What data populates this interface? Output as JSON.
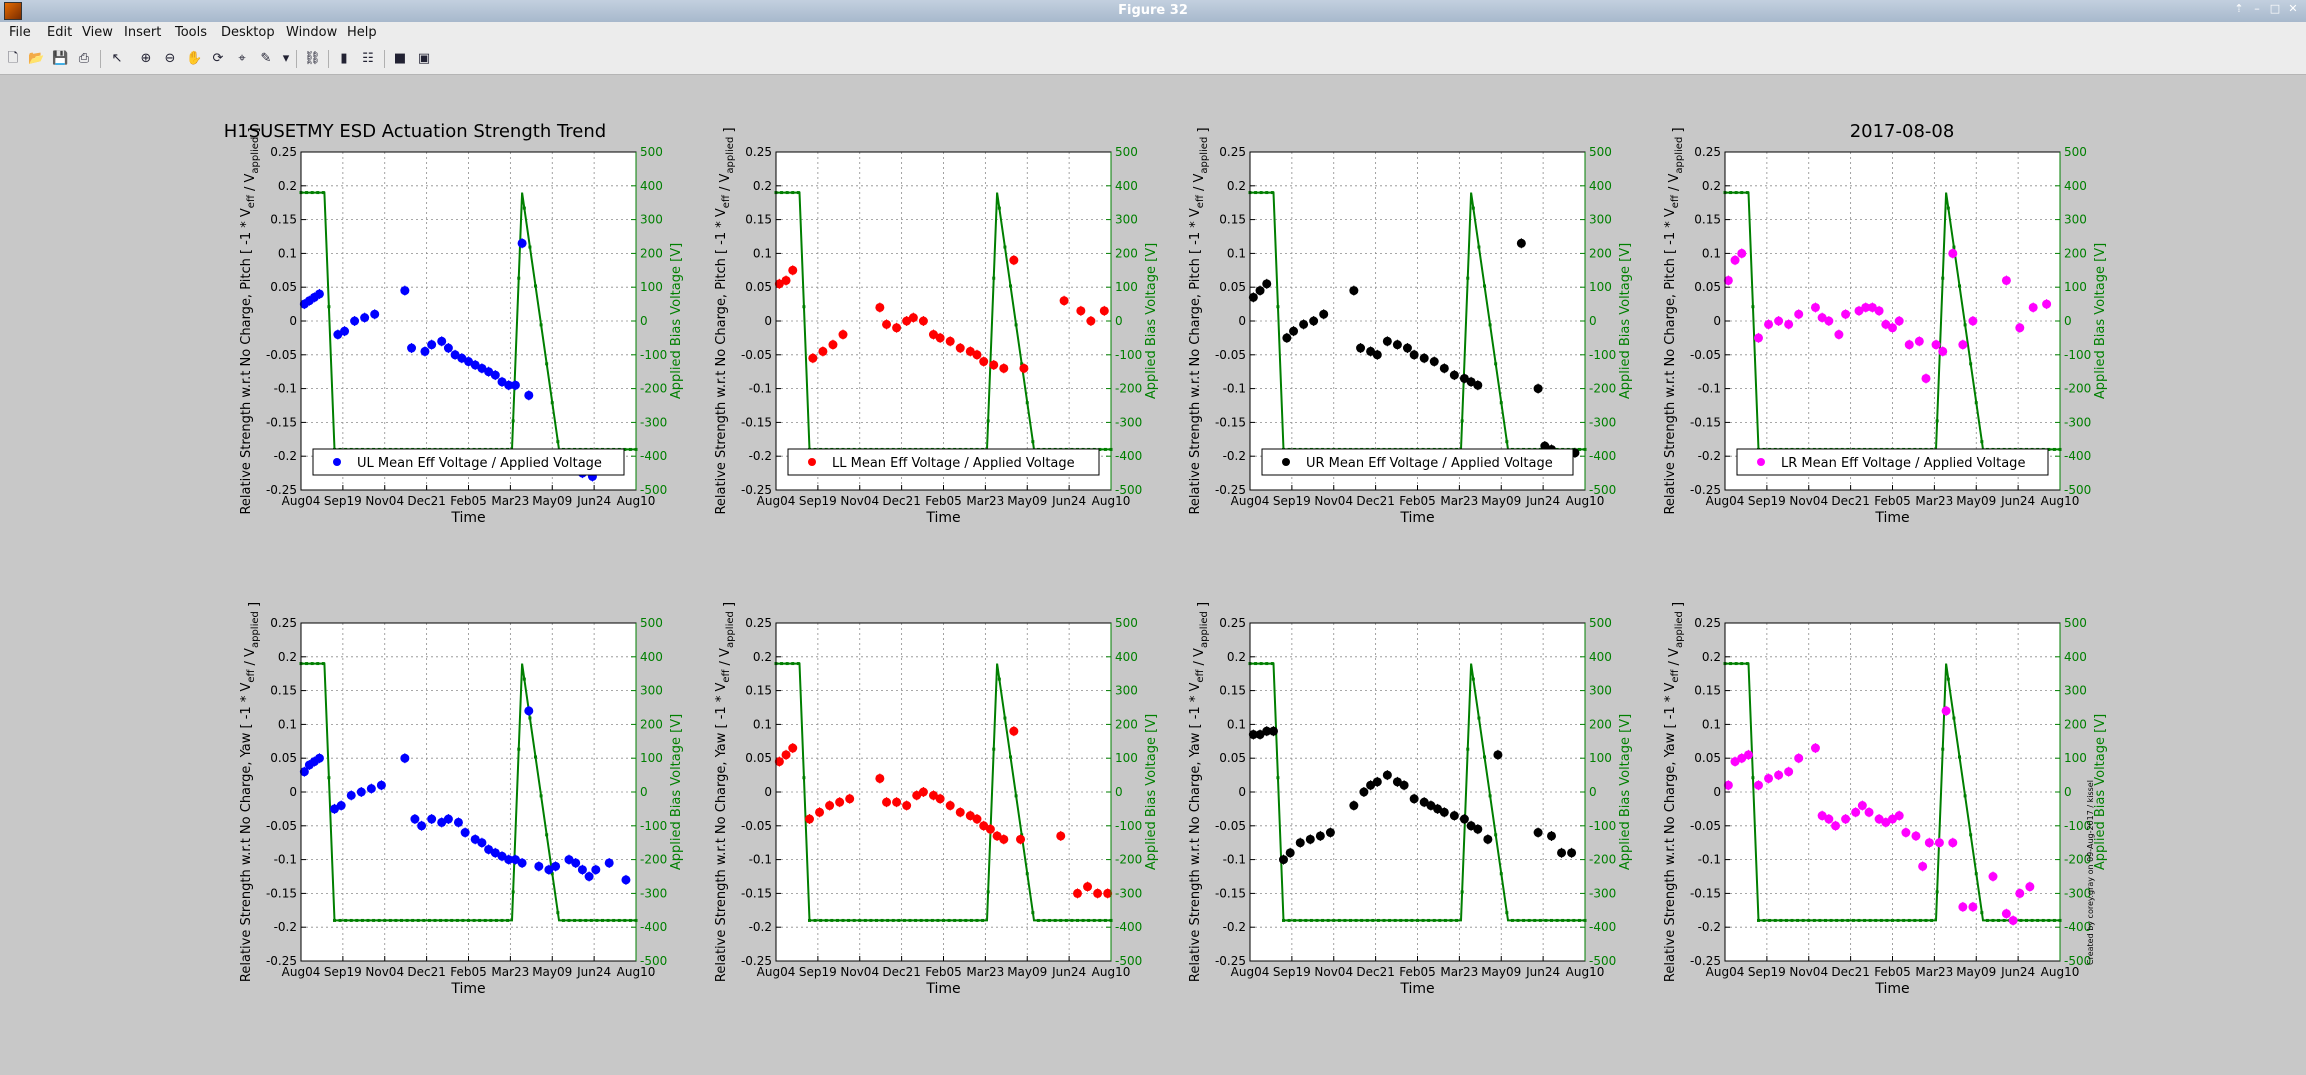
{
  "window": {
    "title": "Figure 32"
  },
  "menu": [
    "File",
    "Edit",
    "View",
    "Insert",
    "Tools",
    "Desktop",
    "Window",
    "Help"
  ],
  "toolbar": [
    "new-file-icon",
    "open-icon",
    "save-icon",
    "print-icon",
    "pointer-icon",
    "zoom-in-icon",
    "zoom-out-icon",
    "pan-icon",
    "rotate-icon",
    "data-cursor-icon",
    "brush-icon",
    "link-icon",
    "colorbar-icon",
    "legend-icon",
    "hide-plot-tools-icon",
    "show-plot-tools-icon"
  ],
  "chart_data": {
    "type": "scatter",
    "suptitle_left": "H1SUSETMY ESD Actuation Strength Trend",
    "suptitle_right": "2017-08-08",
    "xlabel": "Time",
    "x_ticks": [
      "Aug04",
      "Sep19",
      "Nov04",
      "Dec21",
      "Feb05",
      "Mar23",
      "May09",
      "Jun24",
      "Aug10"
    ],
    "y_ticks_left": [
      "0.25",
      "0.2",
      "0.15",
      "0.1",
      "0.05",
      "0",
      "-0.05",
      "-0.1",
      "-0.15",
      "-0.2",
      "-0.25"
    ],
    "y_ticks_right": [
      "500",
      "400",
      "300",
      "200",
      "100",
      "0",
      "-100",
      "-200",
      "-300",
      "-400",
      "-500"
    ],
    "ylim_left": [
      -0.25,
      0.25
    ],
    "ylim_right": [
      -500,
      500
    ],
    "ylabel_right": "Applied Bias Voltage [V]",
    "grid": true,
    "legend_position": "bottom",
    "side_annotation": "Created by corey.gray on 09-Aug-2017 / kissel",
    "bias_voltage": {
      "color": "#007f00",
      "x": [
        0,
        0.07,
        0.1,
        0.63,
        0.66,
        0.77,
        0.8,
        1
      ],
      "y": [
        380,
        380,
        -380,
        -380,
        380,
        -380,
        -380,
        -380
      ]
    },
    "panels": [
      {
        "quadrant": "UL",
        "dof": "Pitch",
        "color": "#0000ff",
        "legend": "UL Mean Eff Voltage / Applied Voltage",
        "ylabel": "Relative Strength w.r.t No Charge, Pitch [ -1 * V_eff / V_applied ]",
        "x": [
          0.01,
          0.025,
          0.04,
          0.055,
          0.11,
          0.13,
          0.16,
          0.19,
          0.22,
          0.31,
          0.33,
          0.37,
          0.39,
          0.42,
          0.44,
          0.46,
          0.48,
          0.5,
          0.52,
          0.54,
          0.56,
          0.58,
          0.6,
          0.62,
          0.64,
          0.66,
          0.68,
          0.78,
          0.81,
          0.84,
          0.87
        ],
        "y": [
          0.025,
          0.03,
          0.035,
          0.04,
          -0.02,
          -0.015,
          0.0,
          0.005,
          0.01,
          0.045,
          -0.04,
          -0.045,
          -0.035,
          -0.03,
          -0.04,
          -0.05,
          -0.055,
          -0.06,
          -0.065,
          -0.07,
          -0.075,
          -0.08,
          -0.09,
          -0.095,
          -0.095,
          0.115,
          -0.11,
          -0.215,
          -0.22,
          -0.225,
          -0.23
        ]
      },
      {
        "quadrant": "LL",
        "dof": "Pitch",
        "color": "#ff0000",
        "legend": "LL Mean Eff Voltage / Applied Voltage",
        "ylabel": "Relative Strength w.r.t No Charge, Pitch [ -1 * V_eff / V_applied ]",
        "x": [
          0.01,
          0.03,
          0.05,
          0.11,
          0.14,
          0.17,
          0.2,
          0.31,
          0.33,
          0.36,
          0.39,
          0.41,
          0.44,
          0.47,
          0.49,
          0.52,
          0.55,
          0.58,
          0.6,
          0.62,
          0.65,
          0.68,
          0.71,
          0.74,
          0.86,
          0.91,
          0.94,
          0.98
        ],
        "y": [
          0.055,
          0.06,
          0.075,
          -0.055,
          -0.045,
          -0.035,
          -0.02,
          0.02,
          -0.005,
          -0.01,
          0.0,
          0.005,
          0.0,
          -0.02,
          -0.025,
          -0.03,
          -0.04,
          -0.045,
          -0.05,
          -0.06,
          -0.065,
          -0.07,
          0.09,
          -0.07,
          0.03,
          0.015,
          0.0,
          0.015
        ]
      },
      {
        "quadrant": "UR",
        "dof": "Pitch",
        "color": "#000000",
        "legend": "UR Mean Eff Voltage / Applied Voltage",
        "ylabel": "Relative Strength w.r.t No Charge, Pitch [ -1 * V_eff / V_applied ]",
        "x": [
          0.01,
          0.03,
          0.05,
          0.11,
          0.13,
          0.16,
          0.19,
          0.22,
          0.31,
          0.33,
          0.36,
          0.38,
          0.41,
          0.44,
          0.47,
          0.49,
          0.52,
          0.55,
          0.58,
          0.61,
          0.64,
          0.66,
          0.68,
          0.81,
          0.86,
          0.88,
          0.9,
          0.93,
          0.97
        ],
        "y": [
          0.035,
          0.045,
          0.055,
          -0.025,
          -0.015,
          -0.005,
          0.0,
          0.01,
          0.045,
          -0.04,
          -0.045,
          -0.05,
          -0.03,
          -0.035,
          -0.04,
          -0.05,
          -0.055,
          -0.06,
          -0.07,
          -0.08,
          -0.085,
          -0.09,
          -0.095,
          0.115,
          -0.1,
          -0.185,
          -0.19,
          -0.2,
          -0.195
        ]
      },
      {
        "quadrant": "LR",
        "dof": "Pitch",
        "color": "#ff00ff",
        "legend": "LR Mean Eff Voltage / Applied Voltage",
        "ylabel": "Relative Strength w.r.t No Charge, Pitch [ -1 * V_eff / V_applied ]",
        "x": [
          0.01,
          0.03,
          0.05,
          0.1,
          0.13,
          0.16,
          0.19,
          0.22,
          0.27,
          0.29,
          0.31,
          0.34,
          0.36,
          0.4,
          0.42,
          0.44,
          0.46,
          0.48,
          0.5,
          0.52,
          0.55,
          0.58,
          0.6,
          0.63,
          0.65,
          0.68,
          0.71,
          0.74,
          0.84,
          0.88,
          0.92,
          0.96
        ],
        "y": [
          0.06,
          0.09,
          0.1,
          -0.025,
          -0.005,
          0.0,
          -0.005,
          0.01,
          0.02,
          0.005,
          0.0,
          -0.02,
          0.01,
          0.015,
          0.02,
          0.02,
          0.015,
          -0.005,
          -0.01,
          0.0,
          -0.035,
          -0.03,
          -0.085,
          -0.035,
          -0.045,
          0.1,
          -0.035,
          0.0,
          0.06,
          -0.01,
          0.02,
          0.025
        ]
      },
      {
        "quadrant": "UL",
        "dof": "Yaw",
        "color": "#0000ff",
        "legend": "",
        "ylabel": "Relative Strength w.r.t No Charge, Yaw [ -1 * V_eff / V_applied ]",
        "x": [
          0.01,
          0.025,
          0.04,
          0.055,
          0.1,
          0.12,
          0.15,
          0.18,
          0.21,
          0.24,
          0.31,
          0.34,
          0.36,
          0.39,
          0.42,
          0.44,
          0.47,
          0.49,
          0.52,
          0.54,
          0.56,
          0.58,
          0.6,
          0.62,
          0.64,
          0.66,
          0.68,
          0.71,
          0.74,
          0.76,
          0.8,
          0.82,
          0.84,
          0.86,
          0.88,
          0.92,
          0.97
        ],
        "y": [
          0.03,
          0.04,
          0.045,
          0.05,
          -0.025,
          -0.02,
          -0.005,
          0.0,
          0.005,
          0.01,
          0.05,
          -0.04,
          -0.05,
          -0.04,
          -0.045,
          -0.04,
          -0.045,
          -0.06,
          -0.07,
          -0.075,
          -0.085,
          -0.09,
          -0.095,
          -0.1,
          -0.1,
          -0.105,
          0.12,
          -0.11,
          -0.115,
          -0.11,
          -0.1,
          -0.105,
          -0.115,
          -0.125,
          -0.115,
          -0.105,
          -0.13
        ]
      },
      {
        "quadrant": "LL",
        "dof": "Yaw",
        "color": "#ff0000",
        "legend": "",
        "ylabel": "Relative Strength w.r.t No Charge, Yaw [ -1 * V_eff / V_applied ]",
        "x": [
          0.01,
          0.03,
          0.05,
          0.1,
          0.13,
          0.16,
          0.19,
          0.22,
          0.31,
          0.33,
          0.36,
          0.39,
          0.42,
          0.44,
          0.47,
          0.49,
          0.52,
          0.55,
          0.58,
          0.6,
          0.62,
          0.64,
          0.66,
          0.68,
          0.71,
          0.73,
          0.85,
          0.9,
          0.93,
          0.96,
          0.99
        ],
        "y": [
          0.045,
          0.055,
          0.065,
          -0.04,
          -0.03,
          -0.02,
          -0.015,
          -0.01,
          0.02,
          -0.015,
          -0.015,
          -0.02,
          -0.005,
          0.0,
          -0.005,
          -0.01,
          -0.02,
          -0.03,
          -0.035,
          -0.04,
          -0.05,
          -0.055,
          -0.065,
          -0.07,
          0.09,
          -0.07,
          -0.065,
          -0.15,
          -0.14,
          -0.15,
          -0.15
        ]
      },
      {
        "quadrant": "UR",
        "dof": "Yaw",
        "color": "#000000",
        "legend": "",
        "ylabel": "Relative Strength w.r.t No Charge, Yaw [ -1 * V_eff / V_applied ]",
        "x": [
          0.01,
          0.03,
          0.05,
          0.07,
          0.1,
          0.12,
          0.15,
          0.18,
          0.21,
          0.24,
          0.31,
          0.34,
          0.36,
          0.38,
          0.41,
          0.44,
          0.46,
          0.49,
          0.52,
          0.54,
          0.56,
          0.58,
          0.61,
          0.64,
          0.66,
          0.68,
          0.71,
          0.74,
          0.86,
          0.9,
          0.93,
          0.96
        ],
        "y": [
          0.085,
          0.085,
          0.09,
          0.09,
          -0.1,
          -0.09,
          -0.075,
          -0.07,
          -0.065,
          -0.06,
          -0.02,
          0.0,
          0.01,
          0.015,
          0.025,
          0.015,
          0.01,
          -0.01,
          -0.015,
          -0.02,
          -0.025,
          -0.03,
          -0.035,
          -0.04,
          -0.05,
          -0.055,
          -0.07,
          0.055,
          -0.06,
          -0.065,
          -0.09,
          -0.09
        ]
      },
      {
        "quadrant": "LR",
        "dof": "Yaw",
        "color": "#ff00ff",
        "legend": "",
        "ylabel": "Relative Strength w.r.t No Charge, Yaw [ -1 * V_eff / V_applied ]",
        "x": [
          0.01,
          0.03,
          0.05,
          0.07,
          0.1,
          0.13,
          0.16,
          0.19,
          0.22,
          0.27,
          0.29,
          0.31,
          0.33,
          0.36,
          0.39,
          0.41,
          0.43,
          0.46,
          0.48,
          0.5,
          0.52,
          0.54,
          0.57,
          0.59,
          0.61,
          0.64,
          0.66,
          0.68,
          0.71,
          0.74,
          0.8,
          0.84,
          0.86,
          0.88,
          0.91
        ],
        "y": [
          0.01,
          0.045,
          0.05,
          0.055,
          0.01,
          0.02,
          0.025,
          0.03,
          0.05,
          0.065,
          -0.035,
          -0.04,
          -0.05,
          -0.04,
          -0.03,
          -0.02,
          -0.03,
          -0.04,
          -0.045,
          -0.04,
          -0.035,
          -0.06,
          -0.065,
          -0.11,
          -0.075,
          -0.075,
          0.12,
          -0.075,
          -0.17,
          -0.17,
          -0.125,
          -0.18,
          -0.19,
          -0.15,
          -0.14
        ]
      }
    ]
  }
}
